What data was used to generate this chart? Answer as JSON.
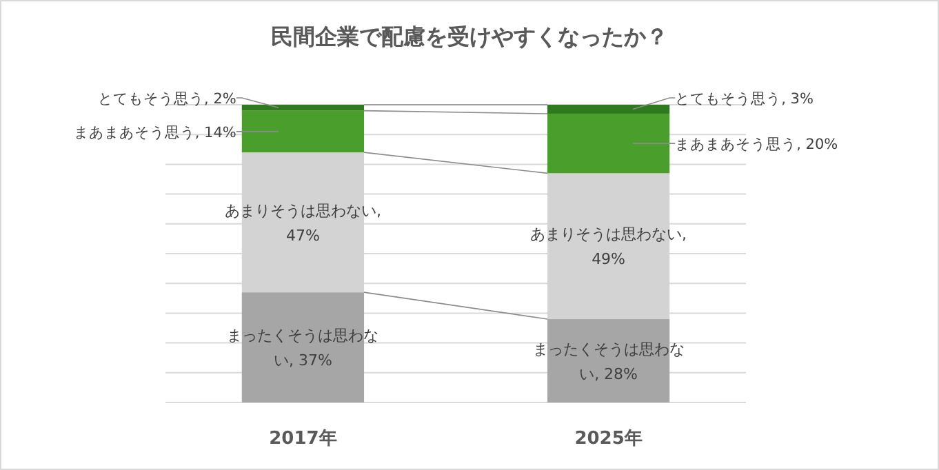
{
  "chart_data": {
    "type": "bar",
    "title": "民間企業で配慮を受けやすくなったか？",
    "categories": [
      "2017年",
      "2025年"
    ],
    "stacked": true,
    "ylim": [
      0,
      100
    ],
    "yticks": [
      {
        "value": 0,
        "label": null
      },
      {
        "value": 10,
        "label": null
      },
      {
        "value": 20,
        "label": null
      },
      {
        "value": 30,
        "label": null
      },
      {
        "value": 40,
        "label": null
      },
      {
        "value": 50,
        "label": null
      },
      {
        "value": 60,
        "label": null
      },
      {
        "value": 70,
        "label": null
      },
      {
        "value": 80,
        "label": null
      },
      {
        "value": 90,
        "label": null
      },
      {
        "value": 100,
        "label": null
      }
    ],
    "tick_labels": "x",
    "grid": "y",
    "series": [
      {
        "color": "#a6a6a6",
        "values": [
          37,
          28
        ],
        "value_labels": [
          "まったくそうは思わない, 37%",
          "まったくそうは思わない, 28%"
        ]
      },
      {
        "color": "#d3d3d3",
        "values": [
          47,
          49
        ],
        "value_labels": [
          "あまりそうは思わない, 47%",
          "あまりそうは思わない, 49%"
        ]
      },
      {
        "color": "#4a9e2b",
        "values": [
          14,
          20
        ],
        "value_labels": [
          "まあまあそう思う, 14%",
          "まあまあそう思う, 20%"
        ]
      },
      {
        "color": "#2f7a1f",
        "values": [
          2,
          3
        ],
        "value_labels": [
          "とてもそう思う, 2%",
          "とてもそう思う, 3%"
        ]
      }
    ]
  }
}
